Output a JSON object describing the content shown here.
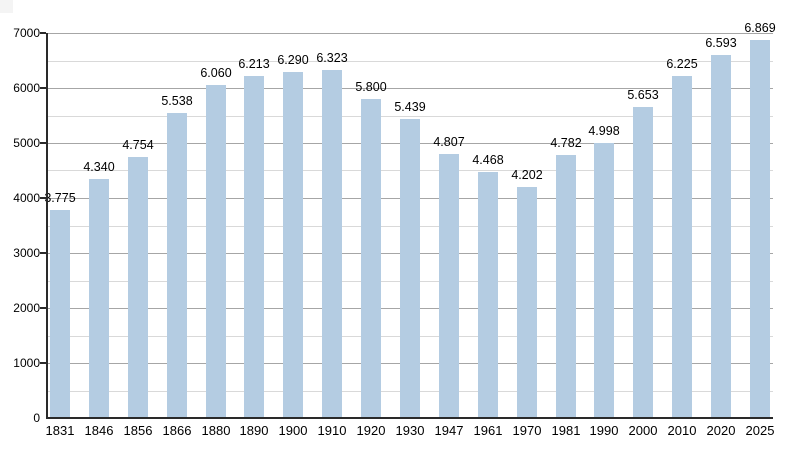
{
  "page": {
    "background": "#ffffff",
    "corner_artifact_color": "#f4f4f4"
  },
  "chart_data": {
    "type": "bar",
    "title": "",
    "xlabel": "",
    "ylabel": "",
    "categories": [
      "1831",
      "1846",
      "1856",
      "1866",
      "1880",
      "1890",
      "1900",
      "1910",
      "1920",
      "1930",
      "1947",
      "1961",
      "1970",
      "1981",
      "1990",
      "2000",
      "2010",
      "2020",
      "2025"
    ],
    "values": [
      3775,
      4340,
      4754,
      5538,
      6060,
      6213,
      6290,
      6323,
      5800,
      5439,
      4807,
      4468,
      4202,
      4782,
      4998,
      5653,
      6225,
      6593,
      6869
    ],
    "value_labels": [
      "3.775",
      "4.340",
      "4.754",
      "5.538",
      "6.060",
      "6.213",
      "6.290",
      "6.323",
      "5.800",
      "5.439",
      "4.807",
      "4.468",
      "4.202",
      "4.782",
      "4.998",
      "5.653",
      "6.225",
      "6.593",
      "6.869"
    ],
    "ylim": [
      0,
      7000
    ],
    "ytick_interval": 1000,
    "ytick_labels": [
      "0",
      "1000",
      "2000",
      "3000",
      "4000",
      "5000",
      "6000",
      "7000"
    ],
    "minor_gridline_interval": 500,
    "grid": true,
    "legend": false,
    "bar_color": "#b4cce2",
    "major_gridline_color": "#a6a6a6",
    "minor_gridline_color": "#d9d9d9",
    "axis_color": "#2a2a2a",
    "text_color": "#000000"
  }
}
